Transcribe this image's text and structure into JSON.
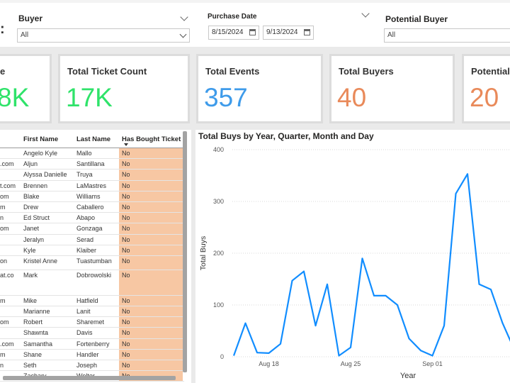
{
  "filters": {
    "buyer": {
      "title": "Buyer",
      "value": "All"
    },
    "purchase_date": {
      "title": "Purchase Date",
      "start": "8/15/2024",
      "end": "9/13/2024"
    },
    "potential_buyer": {
      "title": "Potential Buyer",
      "value": "All"
    }
  },
  "cards": [
    {
      "label": "e",
      "value": "8K",
      "color": "#2fe36a"
    },
    {
      "label": "Total Ticket Count",
      "value": "17K",
      "color": "#2fe36a"
    },
    {
      "label": "Total Events",
      "value": "357",
      "color": "#3e9bea"
    },
    {
      "label": "Total Buyers",
      "value": "40",
      "color": "#e98a5a"
    },
    {
      "label": "Potential",
      "value": "20",
      "color": "#e98a5a"
    }
  ],
  "table": {
    "headers": [
      "",
      "First Name",
      "Last Name",
      "Has Bought Ticket"
    ],
    "rows": [
      [
        "",
        "Angelo Kyle",
        "Mallo",
        "No"
      ],
      [
        ".com",
        "Aljun",
        "Santillana",
        "No"
      ],
      [
        "",
        "Alyssa Danielle",
        "Truya",
        "No"
      ],
      [
        "t.com",
        "Brennen",
        "LaMastres",
        "No"
      ],
      [
        "om",
        "Blake",
        "Williams",
        "No"
      ],
      [
        "m",
        "Drew",
        "Caballero",
        "No"
      ],
      [
        "n",
        "Ed Struct",
        "Abapo",
        "No"
      ],
      [
        "om",
        "Janet",
        "Gonzaga",
        "No"
      ],
      [
        "",
        "Jeralyn",
        "Serad",
        "No"
      ],
      [
        "",
        "Kyle",
        "Klaiber",
        "No"
      ],
      [
        "on",
        "Kristel Anne",
        "Tuastumban",
        "No"
      ],
      [
        "at.co",
        "Mark",
        "Dobrowolski",
        "No"
      ],
      [
        "m",
        "Mike",
        "Hatfield",
        "No"
      ],
      [
        "",
        "Marianne",
        "Lanit",
        "No"
      ],
      [
        "om",
        "Robert",
        "Sharemet",
        "No"
      ],
      [
        "",
        "Shawnta",
        "Davis",
        "No"
      ],
      [
        ".com",
        "Samantha",
        "Fortenberry",
        "No"
      ],
      [
        "m",
        "Shane",
        "Handler",
        "No"
      ],
      [
        "n",
        "Seth",
        "Joseph",
        "No"
      ],
      [
        "",
        "Zachary",
        "Wolter",
        "No"
      ]
    ]
  },
  "chart": {
    "title": "Total Buys by Year, Quarter, Month and Day",
    "ylabel": "Total Buys",
    "xlabel": "Year",
    "line_color": "#118dff"
  },
  "chart_data": {
    "type": "line",
    "title": "Total Buys by Year, Quarter, Month and Day",
    "xlabel": "Year",
    "ylabel": "Total Buys",
    "ylim": [
      0,
      400
    ],
    "yticks": [
      0,
      100,
      200,
      300,
      400
    ],
    "xticks": [
      {
        "label": "Aug 18",
        "x": 3
      },
      {
        "label": "Aug 25",
        "x": 10
      },
      {
        "label": "Sep 01",
        "x": 17
      }
    ],
    "x": [
      0,
      1,
      2,
      3,
      4,
      5,
      6,
      7,
      8,
      9,
      10,
      11,
      12,
      13,
      14,
      15,
      16,
      17,
      18,
      19,
      20,
      21,
      22,
      23,
      24
    ],
    "values": [
      2,
      65,
      8,
      7,
      25,
      147,
      165,
      60,
      140,
      2,
      18,
      190,
      118,
      118,
      100,
      35,
      12,
      2,
      60,
      315,
      353,
      140,
      130,
      65,
      14
    ],
    "grid": true
  }
}
